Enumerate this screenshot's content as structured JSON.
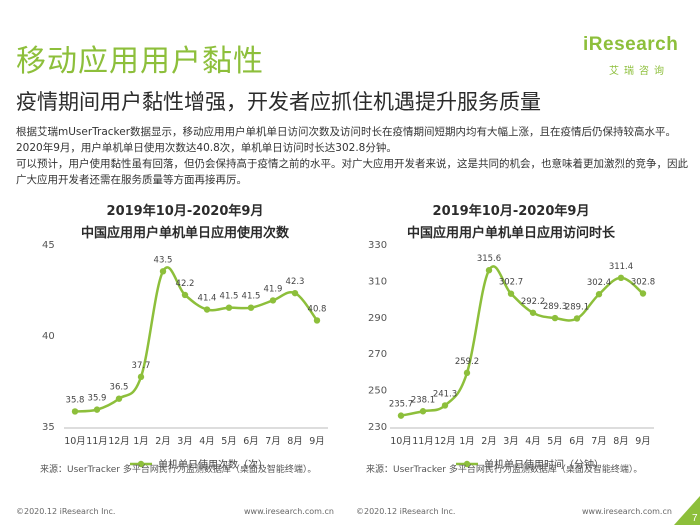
{
  "title": "移动应用用户黏性",
  "subtitle": "疫情期间用户黏性增强，开发者应抓住机遇提升服务质量",
  "logo": {
    "main": "iResearch",
    "sub": "艾瑞咨询"
  },
  "body": [
    "根据艾瑞mUserTracker数据显示，移动应用用户单机单日访问次数及访问时长在疫情期间短期内均有大幅上涨，且在疫情后仍保持较高水平。2020年9月，用户单机单日使用次数达40.8次，单机单日访问时长达302.8分钟。",
    "可以预计，用户使用黏性虽有回落，但仍会保持高于疫情之前的水平。对广大应用开发者来说，这是共同的机会，也意味着更加激烈的竞争，因此广大应用开发者还需在服务质量等方面再接再厉。"
  ],
  "colors": {
    "accent": "#8dbf3b",
    "grid": "#dddddd"
  },
  "chart_data": [
    {
      "type": "line",
      "date": "2019年10月-2020年9月",
      "title": "中国应用用户单机单日应用使用次数",
      "categories": [
        "10月",
        "11月",
        "12月",
        "1月",
        "2月",
        "3月",
        "4月",
        "5月",
        "6月",
        "7月",
        "8月",
        "9月"
      ],
      "series": [
        {
          "name": "单机单日使用次数（次）",
          "values": [
            35.8,
            35.9,
            36.5,
            37.7,
            43.5,
            42.2,
            41.4,
            41.5,
            41.5,
            41.9,
            42.3,
            40.8
          ]
        }
      ],
      "y_ticks": [
        35,
        40,
        45
      ],
      "ylim": [
        35,
        45
      ],
      "legend": "bottom",
      "grid": false,
      "source": "来源：UserTracker 多平台网民行为监测数据库（桌面及智能终端）。"
    },
    {
      "type": "line",
      "date": "2019年10月-2020年9月",
      "title": "中国应用用户单机单日应用访问时长",
      "categories": [
        "10月",
        "11月",
        "12月",
        "1月",
        "2月",
        "3月",
        "4月",
        "5月",
        "6月",
        "7月",
        "8月",
        "9月"
      ],
      "series": [
        {
          "name": "单机单日使用时间（分钟）",
          "values": [
            235.7,
            238.1,
            241.3,
            259.2,
            315.6,
            302.7,
            292.2,
            289.3,
            289.1,
            302.4,
            311.4,
            302.8
          ]
        }
      ],
      "y_ticks": [
        230,
        250,
        270,
        290,
        310,
        330
      ],
      "ylim": [
        230,
        330
      ],
      "legend": "bottom",
      "grid": false,
      "source": "来源：UserTracker 多平台网民行为监测数据库（桌面及智能终端）。"
    }
  ],
  "footer": {
    "copyright": "©2020.12 iResearch Inc.",
    "site": "www.iresearch.com.cn",
    "page": "7"
  }
}
